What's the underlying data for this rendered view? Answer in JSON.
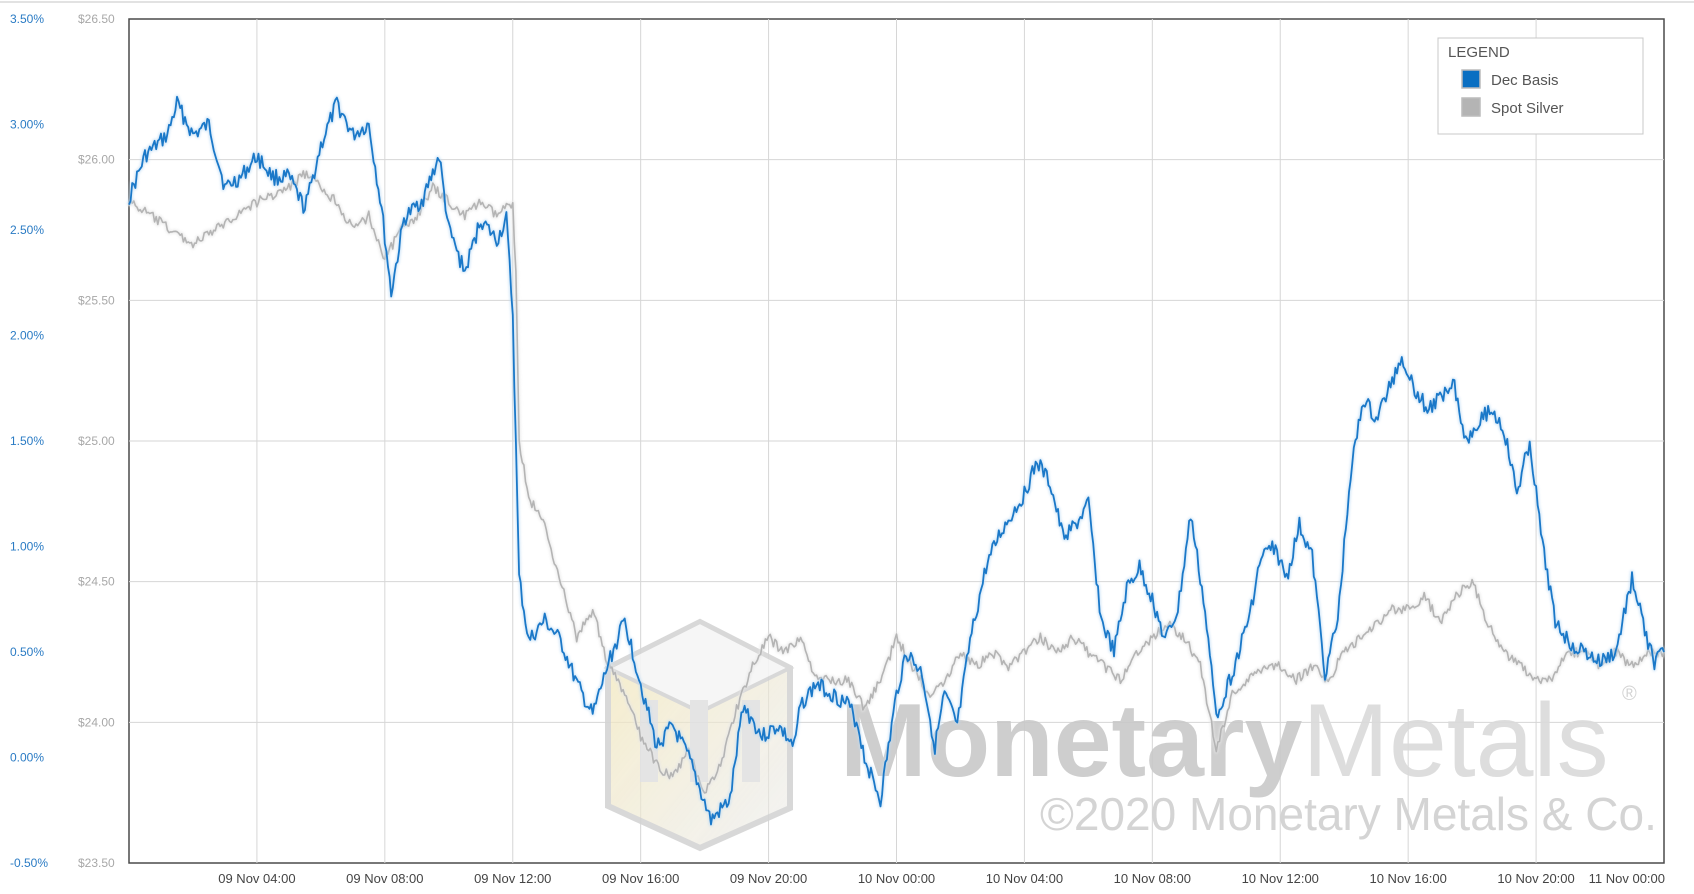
{
  "chart_data": {
    "type": "line",
    "left_axis": {
      "ticks": [
        "3.50%",
        "3.00%",
        "2.50%",
        "2.00%",
        "1.50%",
        "1.00%",
        "0.50%",
        "0.00%",
        "-0.50%"
      ],
      "min": -0.5,
      "max": 3.5,
      "unit": "%"
    },
    "right_axis": {
      "ticks": [
        "$26.50",
        "$26.00",
        "$25.50",
        "$25.00",
        "$24.50",
        "$24.00",
        "$23.50"
      ],
      "min": 23.5,
      "max": 26.5,
      "unit": "$"
    },
    "x_axis": {
      "start": "09 Nov 00:00",
      "end": "11 Nov 00:00",
      "range_hours": [
        0,
        48
      ],
      "ticks": [
        {
          "label": "09 Nov 04:00",
          "hour": 4
        },
        {
          "label": "09 Nov 08:00",
          "hour": 8
        },
        {
          "label": "09 Nov 12:00",
          "hour": 12
        },
        {
          "label": "09 Nov 16:00",
          "hour": 16
        },
        {
          "label": "09 Nov 20:00",
          "hour": 20
        },
        {
          "label": "10 Nov 00:00",
          "hour": 24
        },
        {
          "label": "10 Nov 04:00",
          "hour": 28
        },
        {
          "label": "10 Nov 08:00",
          "hour": 32
        },
        {
          "label": "10 Nov 12:00",
          "hour": 36
        },
        {
          "label": "10 Nov 16:00",
          "hour": 40
        },
        {
          "label": "10 Nov 20:00",
          "hour": 44
        },
        {
          "label": "11 Nov 00:00",
          "hour": 48
        }
      ]
    },
    "grid": true,
    "legend": {
      "title": "LEGEND",
      "placement": "top-right",
      "items": [
        {
          "label": "Dec Basis",
          "color": "#0a6fc2"
        },
        {
          "label": "Spot Silver",
          "color": "#b4b4b4"
        }
      ]
    },
    "series": [
      {
        "name": "Dec Basis",
        "axis": "left",
        "color": "#1a78c8",
        "points": [
          [
            0,
            2.65
          ],
          [
            0.5,
            2.85
          ],
          [
            1.2,
            2.95
          ],
          [
            1.5,
            3.1
          ],
          [
            2.0,
            2.95
          ],
          [
            2.5,
            3.0
          ],
          [
            3.0,
            2.7
          ],
          [
            3.5,
            2.75
          ],
          [
            4.0,
            2.85
          ],
          [
            4.5,
            2.75
          ],
          [
            5.0,
            2.75
          ],
          [
            5.5,
            2.6
          ],
          [
            6.0,
            2.9
          ],
          [
            6.5,
            3.1
          ],
          [
            7.0,
            2.95
          ],
          [
            7.5,
            3.0
          ],
          [
            7.9,
            2.6
          ],
          [
            8.2,
            2.2
          ],
          [
            8.6,
            2.55
          ],
          [
            9.2,
            2.65
          ],
          [
            9.7,
            2.85
          ],
          [
            10.0,
            2.5
          ],
          [
            10.5,
            2.3
          ],
          [
            11.0,
            2.55
          ],
          [
            11.5,
            2.45
          ],
          [
            11.8,
            2.55
          ],
          [
            12.0,
            2.1
          ],
          [
            12.2,
            0.85
          ],
          [
            12.5,
            0.55
          ],
          [
            13.0,
            0.65
          ],
          [
            13.5,
            0.55
          ],
          [
            14.0,
            0.35
          ],
          [
            14.5,
            0.2
          ],
          [
            15.0,
            0.45
          ],
          [
            15.5,
            0.65
          ],
          [
            16.0,
            0.35
          ],
          [
            16.5,
            0.05
          ],
          [
            17.0,
            0.15
          ],
          [
            17.5,
            0.0
          ],
          [
            18.2,
            -0.3
          ],
          [
            18.8,
            -0.2
          ],
          [
            19.2,
            0.25
          ],
          [
            19.8,
            0.1
          ],
          [
            20.3,
            0.15
          ],
          [
            20.8,
            0.05
          ],
          [
            21.0,
            0.25
          ],
          [
            21.5,
            0.35
          ],
          [
            22.0,
            0.3
          ],
          [
            22.5,
            0.25
          ],
          [
            22.8,
            0.15
          ],
          [
            23.0,
            0.0
          ],
          [
            23.5,
            -0.2
          ],
          [
            24.0,
            0.3
          ],
          [
            24.3,
            0.5
          ],
          [
            24.8,
            0.4
          ],
          [
            25.2,
            0.05
          ],
          [
            25.5,
            0.3
          ],
          [
            25.9,
            0.15
          ],
          [
            26.3,
            0.55
          ],
          [
            26.8,
            0.9
          ],
          [
            27.2,
            1.05
          ],
          [
            27.6,
            1.15
          ],
          [
            28.0,
            1.25
          ],
          [
            28.4,
            1.4
          ],
          [
            28.8,
            1.3
          ],
          [
            29.2,
            1.05
          ],
          [
            29.6,
            1.1
          ],
          [
            30.0,
            1.2
          ],
          [
            30.4,
            0.65
          ],
          [
            30.8,
            0.5
          ],
          [
            31.2,
            0.8
          ],
          [
            31.6,
            0.9
          ],
          [
            32.0,
            0.75
          ],
          [
            32.4,
            0.55
          ],
          [
            32.8,
            0.7
          ],
          [
            33.2,
            1.15
          ],
          [
            33.6,
            0.75
          ],
          [
            34.0,
            0.2
          ],
          [
            34.5,
            0.4
          ],
          [
            35.0,
            0.65
          ],
          [
            35.4,
            0.95
          ],
          [
            35.8,
            1.0
          ],
          [
            36.2,
            0.85
          ],
          [
            36.6,
            1.1
          ],
          [
            37.0,
            0.95
          ],
          [
            37.4,
            0.4
          ],
          [
            37.8,
            0.65
          ],
          [
            38.2,
            1.35
          ],
          [
            38.6,
            1.7
          ],
          [
            39.0,
            1.6
          ],
          [
            39.4,
            1.75
          ],
          [
            39.8,
            1.9
          ],
          [
            40.2,
            1.75
          ],
          [
            40.6,
            1.65
          ],
          [
            41.0,
            1.7
          ],
          [
            41.4,
            1.8
          ],
          [
            41.8,
            1.5
          ],
          [
            42.2,
            1.6
          ],
          [
            42.6,
            1.65
          ],
          [
            43.0,
            1.55
          ],
          [
            43.4,
            1.25
          ],
          [
            43.8,
            1.5
          ],
          [
            44.2,
            1.0
          ],
          [
            44.6,
            0.65
          ],
          [
            45.0,
            0.55
          ],
          [
            45.5,
            0.5
          ],
          [
            46.0,
            0.45
          ],
          [
            46.5,
            0.5
          ],
          [
            47.0,
            0.85
          ],
          [
            47.4,
            0.6
          ],
          [
            47.7,
            0.45
          ],
          [
            48.0,
            0.5
          ]
        ]
      },
      {
        "name": "Spot Silver",
        "axis": "right",
        "color": "#b4b4b4",
        "points": [
          [
            0,
            25.85
          ],
          [
            0.7,
            25.8
          ],
          [
            1.3,
            25.75
          ],
          [
            2.0,
            25.7
          ],
          [
            2.7,
            25.75
          ],
          [
            3.3,
            25.8
          ],
          [
            4.0,
            25.85
          ],
          [
            5.0,
            25.9
          ],
          [
            5.5,
            25.95
          ],
          [
            6.0,
            25.9
          ],
          [
            6.5,
            25.85
          ],
          [
            7.0,
            25.75
          ],
          [
            7.5,
            25.8
          ],
          [
            8.0,
            25.65
          ],
          [
            8.5,
            25.75
          ],
          [
            9.0,
            25.8
          ],
          [
            9.5,
            25.9
          ],
          [
            10.0,
            25.85
          ],
          [
            10.5,
            25.8
          ],
          [
            11.0,
            25.85
          ],
          [
            11.5,
            25.8
          ],
          [
            12.0,
            25.85
          ],
          [
            12.1,
            25.6
          ],
          [
            12.2,
            25.0
          ],
          [
            12.5,
            24.8
          ],
          [
            13.0,
            24.7
          ],
          [
            13.5,
            24.5
          ],
          [
            14.0,
            24.3
          ],
          [
            14.5,
            24.4
          ],
          [
            15.0,
            24.2
          ],
          [
            15.5,
            24.1
          ],
          [
            16.0,
            23.95
          ],
          [
            16.5,
            23.85
          ],
          [
            17.0,
            23.8
          ],
          [
            17.5,
            23.9
          ],
          [
            18.0,
            23.75
          ],
          [
            18.5,
            23.85
          ],
          [
            19.0,
            24.05
          ],
          [
            19.5,
            24.2
          ],
          [
            20.0,
            24.3
          ],
          [
            20.5,
            24.25
          ],
          [
            21.0,
            24.3
          ],
          [
            21.5,
            24.15
          ],
          [
            22.0,
            24.15
          ],
          [
            22.5,
            24.15
          ],
          [
            23.0,
            24.05
          ],
          [
            23.5,
            24.15
          ],
          [
            24.0,
            24.3
          ],
          [
            24.5,
            24.2
          ],
          [
            25.0,
            24.1
          ],
          [
            25.5,
            24.15
          ],
          [
            26.0,
            24.25
          ],
          [
            26.5,
            24.2
          ],
          [
            27.0,
            24.25
          ],
          [
            27.5,
            24.2
          ],
          [
            28.0,
            24.25
          ],
          [
            28.5,
            24.3
          ],
          [
            29.0,
            24.25
          ],
          [
            29.5,
            24.3
          ],
          [
            30.0,
            24.25
          ],
          [
            30.5,
            24.2
          ],
          [
            31.0,
            24.15
          ],
          [
            31.5,
            24.25
          ],
          [
            32.0,
            24.3
          ],
          [
            32.5,
            24.35
          ],
          [
            33.0,
            24.3
          ],
          [
            33.5,
            24.2
          ],
          [
            34.0,
            23.9
          ],
          [
            34.5,
            24.1
          ],
          [
            35.0,
            24.15
          ],
          [
            35.5,
            24.2
          ],
          [
            36.0,
            24.2
          ],
          [
            36.5,
            24.15
          ],
          [
            37.0,
            24.2
          ],
          [
            37.5,
            24.15
          ],
          [
            38.0,
            24.25
          ],
          [
            38.5,
            24.3
          ],
          [
            39.0,
            24.35
          ],
          [
            39.5,
            24.4
          ],
          [
            40.0,
            24.4
          ],
          [
            40.5,
            24.45
          ],
          [
            41.0,
            24.35
          ],
          [
            41.5,
            24.45
          ],
          [
            42.0,
            24.5
          ],
          [
            42.5,
            24.35
          ],
          [
            43.0,
            24.25
          ],
          [
            43.5,
            24.2
          ],
          [
            44.0,
            24.15
          ],
          [
            44.5,
            24.15
          ],
          [
            45.0,
            24.25
          ],
          [
            45.5,
            24.25
          ],
          [
            46.0,
            24.2
          ],
          [
            46.5,
            24.25
          ],
          [
            47.0,
            24.2
          ],
          [
            47.5,
            24.25
          ],
          [
            48.0,
            24.25
          ]
        ]
      }
    ]
  },
  "watermark": {
    "brand": "MonetaryMetals",
    "brand_part1": "Monetary",
    "brand_part2": "Metals",
    "registered": "®",
    "copyright": "©2020 Monetary Metals & Co."
  }
}
